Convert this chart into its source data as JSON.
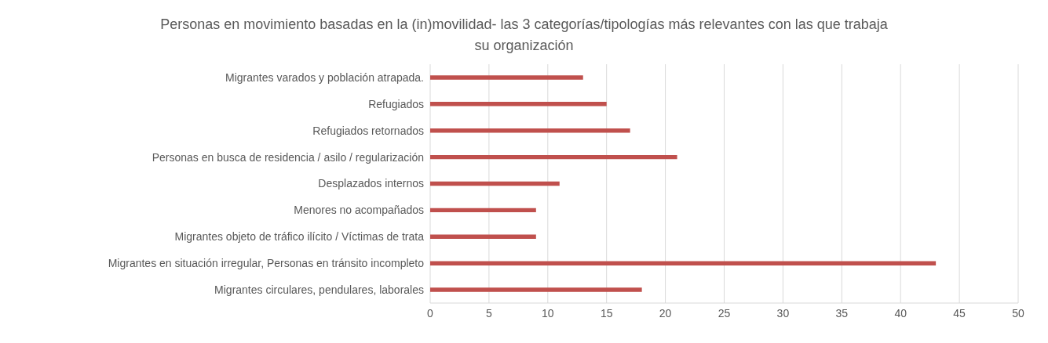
{
  "chart_data": {
    "type": "bar",
    "orientation": "horizontal",
    "title": "Personas en movimiento basadas en la (in)movilidad- las 3 categorías/tipologías más relevantes con las que trabaja su organización",
    "categories": [
      "Migrantes varados y población atrapada.",
      "Refugiados",
      "Refugiados retornados",
      "Personas en busca de residencia / asilo / regularización",
      "Desplazados internos",
      "Menores no acompañados",
      "Migrantes objeto de tráfico ilícito / Víctimas de trata",
      "Migrantes en situación irregular, Personas en tránsito incompleto",
      "Migrantes circulares, pendulares, laborales"
    ],
    "values": [
      13,
      15,
      17,
      21,
      11,
      9,
      9,
      43,
      18
    ],
    "color": "#c0504d",
    "xlim": [
      0,
      50
    ],
    "xticks": [
      0,
      5,
      10,
      15,
      20,
      25,
      30,
      35,
      40,
      45,
      50
    ],
    "grid": "x"
  }
}
